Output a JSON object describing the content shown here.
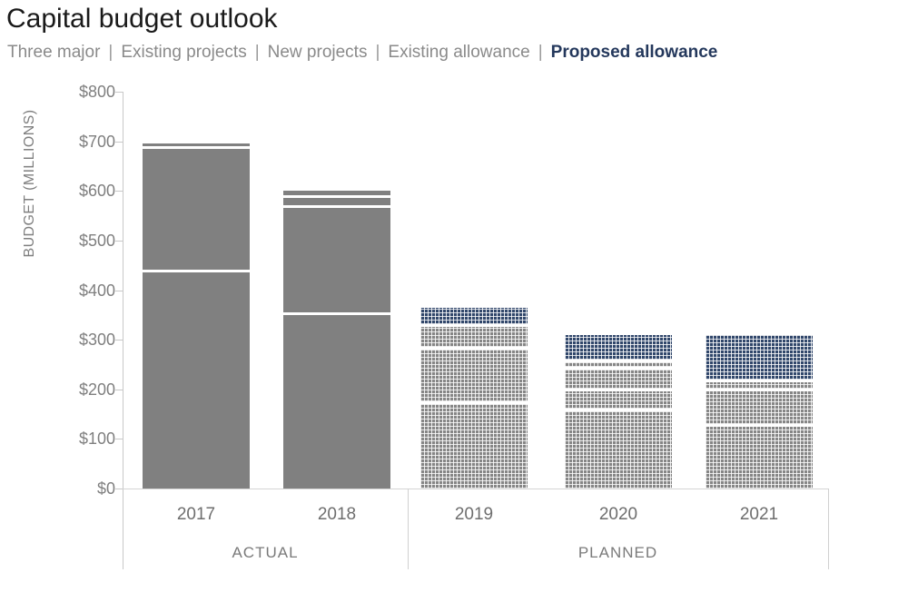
{
  "title": "Capital budget outlook",
  "legend": {
    "separator": "|",
    "items": [
      {
        "label": "Three major",
        "emphasis": false
      },
      {
        "label": "Existing projects",
        "emphasis": false
      },
      {
        "label": "New projects",
        "emphasis": false
      },
      {
        "label": "Existing allowance",
        "emphasis": false
      },
      {
        "label": "Proposed allowance",
        "emphasis": true
      }
    ]
  },
  "colors": {
    "title_text": "#1a1a1a",
    "legend_gray": "#8a8a8a",
    "legend_navy_bold": "#24385c",
    "bar_solid_gray": "#808080",
    "bar_pattern_gray": "#868686",
    "bar_pattern_navy": "#31476b",
    "axis_lines": "#c8c8c8",
    "axis_text": "#7f7f7f",
    "year_text": "#6e6e6e"
  },
  "chart_data": {
    "type": "bar",
    "stacked": true,
    "title": "Capital budget outlook",
    "xlabel": "",
    "ylabel": "BUDGET (MILLIONS)",
    "ylim": [
      0,
      800
    ],
    "ytick_step": 100,
    "yticks": [
      {
        "value": 0,
        "label": "$0"
      },
      {
        "value": 100,
        "label": "$100"
      },
      {
        "value": 200,
        "label": "$200"
      },
      {
        "value": 300,
        "label": "$300"
      },
      {
        "value": 400,
        "label": "$400"
      },
      {
        "value": 500,
        "label": "$500"
      },
      {
        "value": 600,
        "label": "$600"
      },
      {
        "value": 700,
        "label": "$700"
      },
      {
        "value": 800,
        "label": "$800"
      }
    ],
    "categories": [
      "2017",
      "2018",
      "2019",
      "2020",
      "2021"
    ],
    "groups": [
      {
        "label": "ACTUAL",
        "years": [
          "2017",
          "2018"
        ],
        "fill": "solid"
      },
      {
        "label": "PLANNED",
        "years": [
          "2019",
          "2020",
          "2021"
        ],
        "fill": "patterned"
      }
    ],
    "series": [
      {
        "name": "Three major",
        "values": [
          435,
          350,
          170,
          155,
          125
        ]
      },
      {
        "name": "Existing projects",
        "values": [
          250,
          215,
          110,
          40,
          70
        ]
      },
      {
        "name": "New projects",
        "values": [
          10,
          20,
          45,
          45,
          20
        ]
      },
      {
        "name": "Existing allowance",
        "values": [
          0,
          15,
          0,
          15,
          0
        ]
      },
      {
        "name": "Proposed allowance",
        "values": [
          0,
          0,
          40,
          55,
          95
        ]
      }
    ],
    "totals": [
      695,
      600,
      365,
      310,
      310
    ],
    "grid": false,
    "legend_position": "top",
    "units": "millions USD"
  }
}
